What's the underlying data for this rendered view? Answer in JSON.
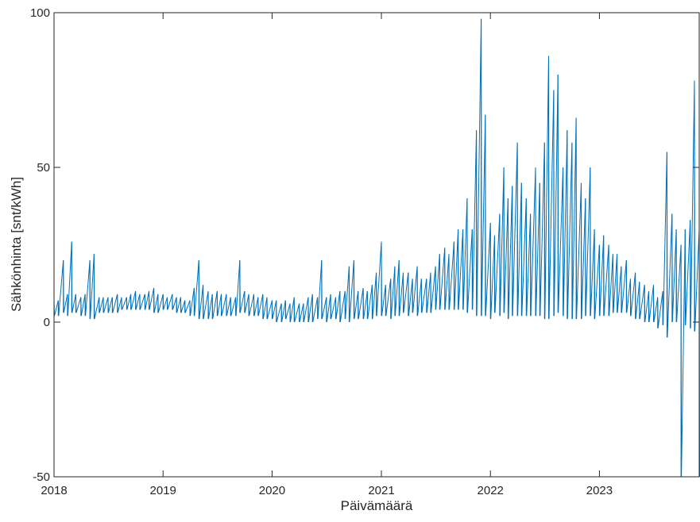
{
  "chart_data": {
    "type": "line",
    "title": "",
    "xlabel": "Päivämäärä",
    "ylabel": "Sähkönhinta [snt/kWh]",
    "xlim": [
      "2018-01-01",
      "2023-12-01"
    ],
    "ylim": [
      -50,
      100
    ],
    "x_ticks": [
      "2018",
      "2019",
      "2020",
      "2021",
      "2022",
      "2023"
    ],
    "y_ticks": [
      -50,
      0,
      50,
      100
    ],
    "grid": false,
    "legend": "none",
    "line_color": "#0072bd",
    "series": [
      {
        "x": [
          "2018-01-01",
          "2018-01-15",
          "2018-02-01",
          "2018-02-15",
          "2018-03-01",
          "2018-03-15",
          "2018-04-01",
          "2018-04-15",
          "2018-05-01",
          "2018-05-15",
          "2018-06-01",
          "2018-06-15",
          "2018-07-01",
          "2018-07-15",
          "2018-08-01",
          "2018-08-15",
          "2018-09-01",
          "2018-09-15",
          "2018-10-01",
          "2018-10-15",
          "2018-11-01",
          "2018-11-15",
          "2018-12-01",
          "2018-12-15",
          "2019-01-01",
          "2019-01-15",
          "2019-02-01",
          "2019-02-15",
          "2019-03-01",
          "2019-03-15",
          "2019-04-01",
          "2019-04-15",
          "2019-05-01",
          "2019-05-15",
          "2019-06-01",
          "2019-06-15",
          "2019-07-01",
          "2019-07-15",
          "2019-08-01",
          "2019-08-15",
          "2019-09-01",
          "2019-09-15",
          "2019-10-01",
          "2019-10-15",
          "2019-11-01",
          "2019-11-15",
          "2019-12-01",
          "2019-12-15",
          "2020-01-01",
          "2020-01-15",
          "2020-02-01",
          "2020-02-15",
          "2020-03-01",
          "2020-03-15",
          "2020-04-01",
          "2020-04-15",
          "2020-05-01",
          "2020-05-15",
          "2020-06-01",
          "2020-06-15",
          "2020-07-01",
          "2020-07-15",
          "2020-08-01",
          "2020-08-15",
          "2020-09-01",
          "2020-09-15",
          "2020-10-01",
          "2020-10-15",
          "2020-11-01",
          "2020-11-15",
          "2020-12-01",
          "2020-12-15",
          "2021-01-01",
          "2021-01-15",
          "2021-02-01",
          "2021-02-15",
          "2021-03-01",
          "2021-03-15",
          "2021-04-01",
          "2021-04-15",
          "2021-05-01",
          "2021-05-15",
          "2021-06-01",
          "2021-06-15",
          "2021-07-01",
          "2021-07-15",
          "2021-08-01",
          "2021-08-15",
          "2021-09-01",
          "2021-09-15",
          "2021-10-01",
          "2021-10-15",
          "2021-11-01",
          "2021-11-15",
          "2021-12-01",
          "2021-12-15",
          "2022-01-01",
          "2022-01-15",
          "2022-02-01",
          "2022-02-15",
          "2022-03-01",
          "2022-03-15",
          "2022-04-01",
          "2022-04-15",
          "2022-05-01",
          "2022-05-15",
          "2022-06-01",
          "2022-06-15",
          "2022-07-01",
          "2022-07-15",
          "2022-08-01",
          "2022-08-15",
          "2022-09-01",
          "2022-09-15",
          "2022-10-01",
          "2022-10-15",
          "2022-11-01",
          "2022-11-15",
          "2022-12-01",
          "2022-12-15",
          "2023-01-01",
          "2023-01-15",
          "2023-02-01",
          "2023-02-15",
          "2023-03-01",
          "2023-03-15",
          "2023-04-01",
          "2023-04-15",
          "2023-05-01",
          "2023-05-15",
          "2023-06-01",
          "2023-06-15",
          "2023-07-01",
          "2023-07-15",
          "2023-08-01",
          "2023-08-15",
          "2023-09-01",
          "2023-09-15",
          "2023-10-01",
          "2023-10-15",
          "2023-11-01",
          "2023-11-15",
          "2023-12-01"
        ],
        "y_min": [
          2,
          2,
          3,
          2,
          3,
          3,
          2,
          2,
          1,
          1,
          3,
          3,
          3,
          3,
          3,
          4,
          4,
          4,
          4,
          4,
          4,
          4,
          3,
          3,
          4,
          4,
          4,
          3,
          3,
          3,
          2,
          2,
          1,
          1,
          1,
          1,
          2,
          2,
          2,
          2,
          2,
          3,
          3,
          2,
          2,
          2,
          1,
          1,
          1,
          0,
          0,
          1,
          0,
          0,
          0,
          0,
          0,
          0,
          1,
          1,
          0,
          1,
          1,
          0,
          1,
          0,
          1,
          1,
          1,
          1,
          1,
          2,
          2,
          2,
          1,
          2,
          2,
          3,
          2,
          3,
          2,
          3,
          3,
          3,
          4,
          4,
          4,
          4,
          4,
          4,
          4,
          3,
          4,
          2,
          2,
          2,
          1,
          3,
          2,
          3,
          1,
          2,
          2,
          2,
          2,
          2,
          2,
          2,
          1,
          1,
          2,
          3,
          2,
          1,
          1,
          1,
          1,
          2,
          2,
          1,
          2,
          2,
          2,
          3,
          3,
          3,
          3,
          2,
          1,
          1,
          0,
          0,
          0,
          -2,
          -1,
          -5,
          0,
          0,
          -50,
          -1,
          -2,
          -3,
          -50
        ],
        "y_max": [
          7,
          7,
          20,
          9,
          26,
          9,
          8,
          9,
          20,
          22,
          8,
          8,
          8,
          8,
          9,
          8,
          8,
          9,
          10,
          9,
          9,
          10,
          11,
          9,
          9,
          8,
          9,
          8,
          8,
          7,
          7,
          11,
          20,
          12,
          10,
          9,
          10,
          9,
          9,
          8,
          8,
          20,
          10,
          9,
          9,
          8,
          9,
          8,
          7,
          7,
          6,
          7,
          6,
          8,
          6,
          6,
          8,
          9,
          8,
          20,
          8,
          9,
          8,
          10,
          10,
          18,
          20,
          10,
          11,
          10,
          12,
          16,
          26,
          12,
          14,
          18,
          20,
          16,
          16,
          14,
          18,
          14,
          14,
          16,
          18,
          22,
          24,
          22,
          26,
          30,
          30,
          40,
          30,
          62,
          98,
          67,
          32,
          28,
          35,
          50,
          40,
          44,
          58,
          45,
          40,
          35,
          50,
          45,
          58,
          86,
          75,
          80,
          50,
          62,
          58,
          66,
          45,
          40,
          50,
          30,
          25,
          28,
          25,
          22,
          22,
          18,
          20,
          14,
          16,
          13,
          12,
          10,
          12,
          8,
          10,
          55,
          35,
          30,
          25,
          30,
          33,
          78,
          30
        ]
      }
    ]
  }
}
